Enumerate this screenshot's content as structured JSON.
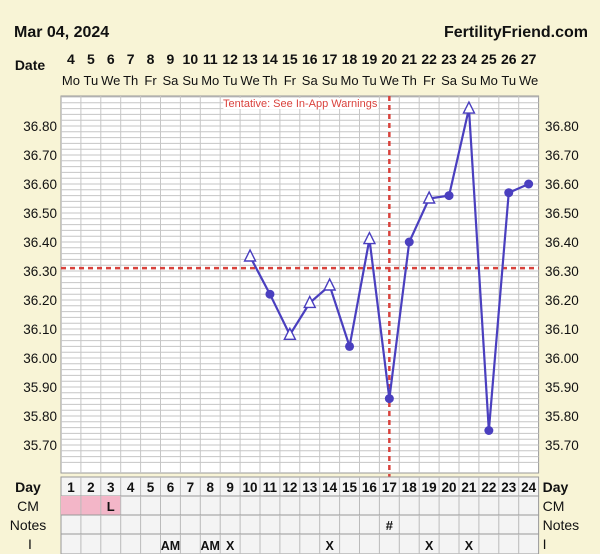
{
  "header": {
    "date": "Mar 04, 2024",
    "site": "FertilityFriend.com"
  },
  "row_labels": {
    "date": "Date",
    "day": "Day",
    "cm": "CM",
    "notes": "Notes",
    "i": "I"
  },
  "chart_data": {
    "type": "line",
    "annotation": "Tentative: See In-App Warnings",
    "x_dates": [
      4,
      5,
      6,
      7,
      8,
      9,
      10,
      11,
      12,
      13,
      14,
      15,
      16,
      17,
      18,
      19,
      20,
      21,
      22,
      23,
      24,
      25,
      26,
      27
    ],
    "x_weekdays": [
      "Mo",
      "Tu",
      "We",
      "Th",
      "Fr",
      "Sa",
      "Su",
      "Mo",
      "Tu",
      "We",
      "Th",
      "Fr",
      "Sa",
      "Su",
      "Mo",
      "Tu",
      "We",
      "Th",
      "Fr",
      "Sa",
      "Su",
      "Mo",
      "Tu",
      "We"
    ],
    "x_days": [
      1,
      2,
      3,
      4,
      5,
      6,
      7,
      8,
      9,
      10,
      11,
      12,
      13,
      14,
      15,
      16,
      17,
      18,
      19,
      20,
      21,
      22,
      23,
      24
    ],
    "y_ticks": [
      "36.80",
      "36.70",
      "36.60",
      "36.50",
      "36.40",
      "36.30",
      "36.20",
      "36.10",
      "36.00",
      "35.90",
      "35.80",
      "35.70"
    ],
    "ylim": [
      35.64,
      36.9
    ],
    "coverline": 36.31,
    "ovulation_day": 17,
    "series": [
      {
        "points": [
          {
            "day": 10,
            "temp": 36.35,
            "marker": "open-triangle"
          },
          {
            "day": 11,
            "temp": 36.22,
            "marker": "dot"
          },
          {
            "day": 12,
            "temp": 36.08,
            "marker": "open-triangle"
          },
          {
            "day": 13,
            "temp": 36.19,
            "marker": "open-triangle"
          },
          {
            "day": 14,
            "temp": 36.25,
            "marker": "open-triangle"
          },
          {
            "day": 15,
            "temp": 36.04,
            "marker": "dot"
          },
          {
            "day": 16,
            "temp": 36.41,
            "marker": "open-triangle"
          },
          {
            "day": 17,
            "temp": 35.86,
            "marker": "dot"
          },
          {
            "day": 18,
            "temp": 36.4,
            "marker": "dot"
          },
          {
            "day": 19,
            "temp": 36.55,
            "marker": "open-triangle"
          },
          {
            "day": 20,
            "temp": 36.56,
            "marker": "dot"
          },
          {
            "day": 21,
            "temp": 36.86,
            "marker": "open-triangle"
          },
          {
            "day": 22,
            "temp": 35.75,
            "marker": "dot"
          },
          {
            "day": 23,
            "temp": 36.57,
            "marker": "dot"
          },
          {
            "day": 24,
            "temp": 36.6,
            "marker": "dot"
          }
        ]
      }
    ],
    "cm_row": {
      "1": "",
      "2": "",
      "3": "L"
    },
    "cm_highlight_days": [
      1,
      2,
      3
    ],
    "notes_row": {
      "17": "#"
    },
    "i_row": {
      "6": "AM",
      "8": "AM",
      "9": "X",
      "14": "X",
      "19": "X",
      "21": "X"
    }
  },
  "colors": {
    "background": "#f8f4d6",
    "plot_bg": "#ffffff",
    "grid": "#c6c6c6",
    "line": "#4a3fbf",
    "reference": "#d9423c",
    "cm_highlight": "#f3b6c8",
    "row_bg": "#f4f4f4"
  }
}
